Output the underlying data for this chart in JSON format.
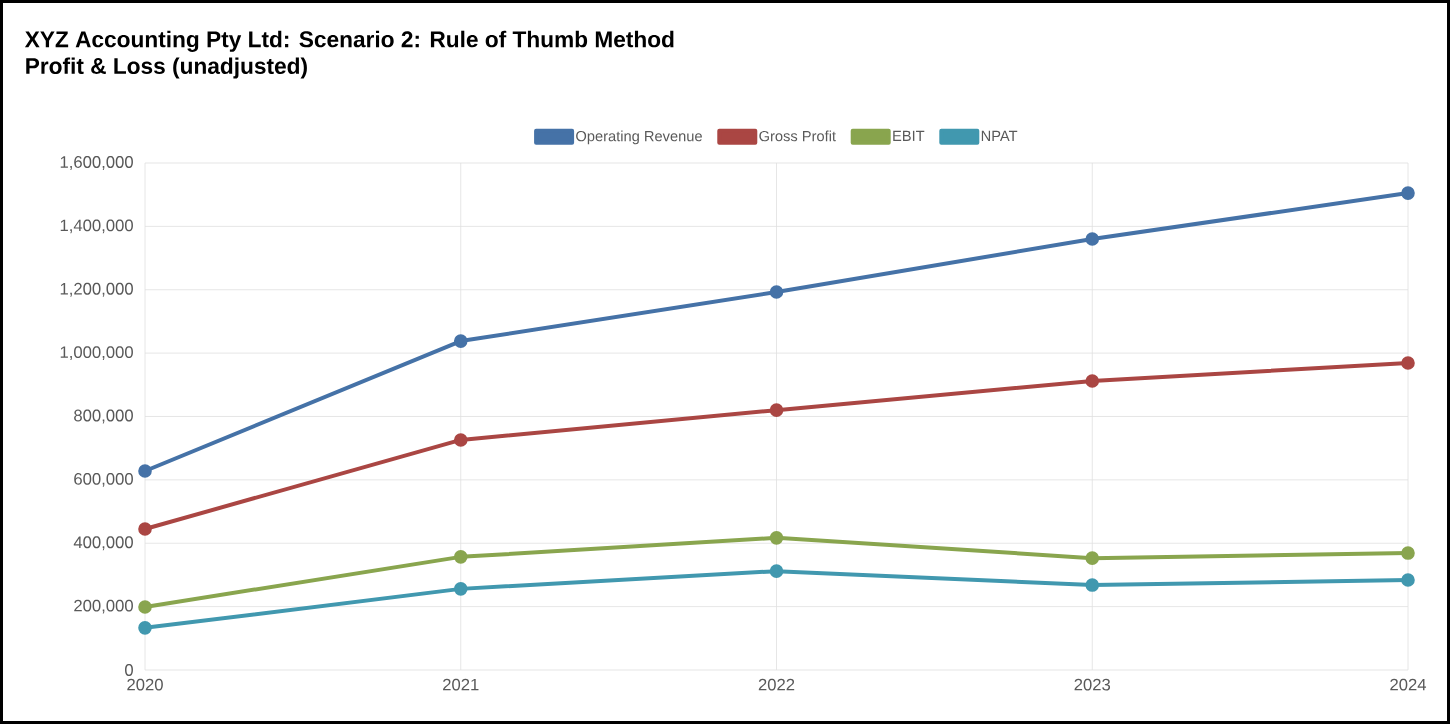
{
  "chart_data": {
    "type": "line",
    "title": "XYZ Accounting Pty Ltd: Scenario 2: Rule of Thumb Method",
    "subtitle": "Profit & Loss (unadjusted)",
    "x": [
      2020,
      2021,
      2022,
      2023,
      2024
    ],
    "series": [
      {
        "name": "Operating Revenue",
        "color": "#4572a7",
        "values": [
          628000,
          1038000,
          1193000,
          1360000,
          1505000
        ]
      },
      {
        "name": "Gross Profit",
        "color": "#aa4643",
        "values": [
          445000,
          726000,
          820000,
          912000,
          969000
        ]
      },
      {
        "name": "EBIT",
        "color": "#89a54e",
        "values": [
          199000,
          357000,
          417000,
          353000,
          369000
        ]
      },
      {
        "name": "NPAT",
        "color": "#4198af",
        "values": [
          133000,
          256000,
          312000,
          268000,
          284000
        ]
      }
    ],
    "xlim": [
      2020,
      2024
    ],
    "xticks": [
      2020,
      2021,
      2022,
      2023,
      2024
    ],
    "ylim": [
      0,
      1600000
    ],
    "yticks": [
      {
        "value": 0,
        "label": "0"
      },
      {
        "value": 200000,
        "label": "200,000"
      },
      {
        "value": 400000,
        "label": "400,000"
      },
      {
        "value": 600000,
        "label": "600,000"
      },
      {
        "value": 800000,
        "label": "800,000"
      },
      {
        "value": 1000000,
        "label": "1,000,000"
      },
      {
        "value": 1200000,
        "label": "1,200,000"
      },
      {
        "value": 1400000,
        "label": "1,400,000"
      },
      {
        "value": 1600000,
        "label": "1,600,000"
      }
    ],
    "grid": true,
    "legend": "top",
    "marker": "circle",
    "line_style": "solid"
  }
}
